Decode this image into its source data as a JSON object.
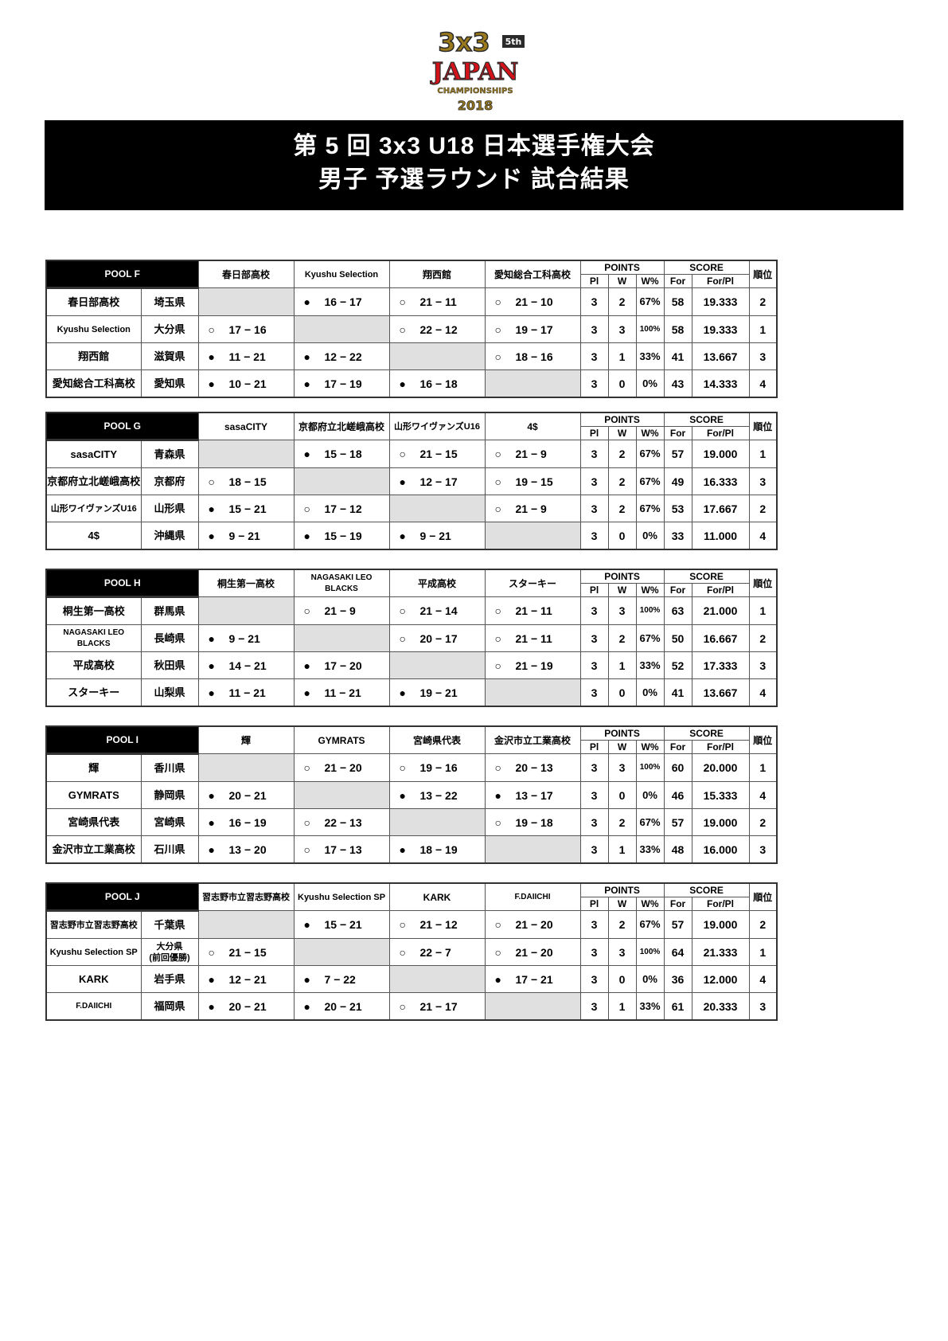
{
  "logo": {
    "text": "3x3 5th JAPAN CHAMPIONSHIPS 2018",
    "colors": {
      "gold": "#9a7a1c",
      "red": "#d4121a",
      "dark": "#2a2a2a"
    }
  },
  "title": {
    "line1": "第 5 回  3x3 U18  日本選手権大会",
    "line2": "男子  予選ラウンド   試合結果"
  },
  "labels": {
    "points": "POINTS",
    "score": "SCORE",
    "pl": "Pl",
    "w": "W",
    "wpct": "W%",
    "for": "For",
    "forpl": "For/Pl",
    "rank": "順位"
  },
  "pools": [
    {
      "name": "POOL  F",
      "teams": [
        {
          "name": "春日部高校",
          "pref": "埼玉県",
          "results": [
            null,
            [
              "●",
              "16 − 17"
            ],
            [
              "○",
              "21 − 11"
            ],
            [
              "○",
              "21 − 10"
            ]
          ],
          "pl": "3",
          "w": "2",
          "wpct": "67%",
          "for": "58",
          "forpl": "19.333",
          "rank": "2"
        },
        {
          "name": "Kyushu Selection",
          "pref": "大分県",
          "results": [
            [
              "○",
              "17 − 16"
            ],
            null,
            [
              "○",
              "22 − 12"
            ],
            [
              "○",
              "19 − 17"
            ]
          ],
          "pl": "3",
          "w": "3",
          "wpct": "100%",
          "for": "58",
          "forpl": "19.333",
          "rank": "1"
        },
        {
          "name": "翔西館",
          "pref": "滋賀県",
          "results": [
            [
              "●",
              "11 − 21"
            ],
            [
              "●",
              "12 − 22"
            ],
            null,
            [
              "○",
              "18 − 16"
            ]
          ],
          "pl": "3",
          "w": "1",
          "wpct": "33%",
          "for": "41",
          "forpl": "13.667",
          "rank": "3"
        },
        {
          "name": "愛知総合工科高校",
          "pref": "愛知県",
          "results": [
            [
              "●",
              "10 − 21"
            ],
            [
              "●",
              "17 − 19"
            ],
            [
              "●",
              "16 − 18"
            ],
            null
          ],
          "pl": "3",
          "w": "0",
          "wpct": "0%",
          "for": "43",
          "forpl": "14.333",
          "rank": "4"
        }
      ]
    },
    {
      "name": "POOL  G",
      "teams": [
        {
          "name": "sasaCITY",
          "pref": "青森県",
          "results": [
            null,
            [
              "●",
              "15 − 18"
            ],
            [
              "○",
              "21 − 15"
            ],
            [
              "○",
              "21 − 9"
            ]
          ],
          "pl": "3",
          "w": "2",
          "wpct": "67%",
          "for": "57",
          "forpl": "19.000",
          "rank": "1"
        },
        {
          "name": "京都府立北嵯峨高校",
          "pref": "京都府",
          "results": [
            [
              "○",
              "18 − 15"
            ],
            null,
            [
              "●",
              "12 − 17"
            ],
            [
              "○",
              "19 − 15"
            ]
          ],
          "pl": "3",
          "w": "2",
          "wpct": "67%",
          "for": "49",
          "forpl": "16.333",
          "rank": "3"
        },
        {
          "name": "山形ワイヴァンズU16",
          "pref": "山形県",
          "results": [
            [
              "●",
              "15 − 21"
            ],
            [
              "○",
              "17 − 12"
            ],
            null,
            [
              "○",
              "21 − 9"
            ]
          ],
          "pl": "3",
          "w": "2",
          "wpct": "67%",
          "for": "53",
          "forpl": "17.667",
          "rank": "2"
        },
        {
          "name": "4$",
          "pref": "沖縄県",
          "results": [
            [
              "●",
              "9 − 21"
            ],
            [
              "●",
              "15 − 19"
            ],
            [
              "●",
              "9 − 21"
            ],
            null
          ],
          "pl": "3",
          "w": "0",
          "wpct": "0%",
          "for": "33",
          "forpl": "11.000",
          "rank": "4"
        }
      ]
    },
    {
      "name": "POOL  H",
      "teams": [
        {
          "name": "桐生第一高校",
          "pref": "群馬県",
          "results": [
            null,
            [
              "○",
              "21 − 9"
            ],
            [
              "○",
              "21 − 14"
            ],
            [
              "○",
              "21 − 11"
            ]
          ],
          "pl": "3",
          "w": "3",
          "wpct": "100%",
          "for": "63",
          "forpl": "21.000",
          "rank": "1"
        },
        {
          "name": "NAGASAKI LEO BLACKS",
          "pref": "長崎県",
          "results": [
            [
              "●",
              "9 − 21"
            ],
            null,
            [
              "○",
              "20 − 17"
            ],
            [
              "○",
              "21 − 11"
            ]
          ],
          "pl": "3",
          "w": "2",
          "wpct": "67%",
          "for": "50",
          "forpl": "16.667",
          "rank": "2"
        },
        {
          "name": "平成高校",
          "pref": "秋田県",
          "results": [
            [
              "●",
              "14 − 21"
            ],
            [
              "●",
              "17 − 20"
            ],
            null,
            [
              "○",
              "21 − 19"
            ]
          ],
          "pl": "3",
          "w": "1",
          "wpct": "33%",
          "for": "52",
          "forpl": "17.333",
          "rank": "3"
        },
        {
          "name": "スターキー",
          "pref": "山梨県",
          "results": [
            [
              "●",
              "11 − 21"
            ],
            [
              "●",
              "11 − 21"
            ],
            [
              "●",
              "19 − 21"
            ],
            null
          ],
          "pl": "3",
          "w": "0",
          "wpct": "0%",
          "for": "41",
          "forpl": "13.667",
          "rank": "4"
        }
      ]
    },
    {
      "name": "POOL  I",
      "teams": [
        {
          "name": "輝",
          "pref": "香川県",
          "results": [
            null,
            [
              "○",
              "21 − 20"
            ],
            [
              "○",
              "19 − 16"
            ],
            [
              "○",
              "20 − 13"
            ]
          ],
          "pl": "3",
          "w": "3",
          "wpct": "100%",
          "for": "60",
          "forpl": "20.000",
          "rank": "1"
        },
        {
          "name": "GYMRATS",
          "pref": "静岡県",
          "results": [
            [
              "●",
              "20 − 21"
            ],
            null,
            [
              "●",
              "13 − 22"
            ],
            [
              "●",
              "13 − 17"
            ]
          ],
          "pl": "3",
          "w": "0",
          "wpct": "0%",
          "for": "46",
          "forpl": "15.333",
          "rank": "4"
        },
        {
          "name": "宮崎県代表",
          "pref": "宮崎県",
          "results": [
            [
              "●",
              "16 − 19"
            ],
            [
              "○",
              "22 − 13"
            ],
            null,
            [
              "○",
              "19 − 18"
            ]
          ],
          "pl": "3",
          "w": "2",
          "wpct": "67%",
          "for": "57",
          "forpl": "19.000",
          "rank": "2"
        },
        {
          "name": "金沢市立工業高校",
          "pref": "石川県",
          "results": [
            [
              "●",
              "13 − 20"
            ],
            [
              "○",
              "17 − 13"
            ],
            [
              "●",
              "18 − 19"
            ],
            null
          ],
          "pl": "3",
          "w": "1",
          "wpct": "33%",
          "for": "48",
          "forpl": "16.000",
          "rank": "3"
        }
      ]
    },
    {
      "name": "POOL  J",
      "teams": [
        {
          "name": "習志野市立習志野高校",
          "pref": "千葉県",
          "results": [
            null,
            [
              "●",
              "15 − 21"
            ],
            [
              "○",
              "21 − 12"
            ],
            [
              "○",
              "21 − 20"
            ]
          ],
          "pl": "3",
          "w": "2",
          "wpct": "67%",
          "for": "57",
          "forpl": "19.000",
          "rank": "2"
        },
        {
          "name": "Kyushu Selection SP",
          "pref": "大分県\n(前回優勝)",
          "results": [
            [
              "○",
              "21 − 15"
            ],
            null,
            [
              "○",
              "22 − 7"
            ],
            [
              "○",
              "21 − 20"
            ]
          ],
          "pl": "3",
          "w": "3",
          "wpct": "100%",
          "for": "64",
          "forpl": "21.333",
          "rank": "1"
        },
        {
          "name": "KARK",
          "pref": "岩手県",
          "results": [
            [
              "●",
              "12 − 21"
            ],
            [
              "●",
              "7 − 22"
            ],
            null,
            [
              "●",
              "17 − 21"
            ]
          ],
          "pl": "3",
          "w": "0",
          "wpct": "0%",
          "for": "36",
          "forpl": "12.000",
          "rank": "4"
        },
        {
          "name": "F.DAIICHI",
          "pref": "福岡県",
          "results": [
            [
              "●",
              "20 − 21"
            ],
            [
              "●",
              "20 − 21"
            ],
            [
              "○",
              "21 − 17"
            ],
            null
          ],
          "pl": "3",
          "w": "1",
          "wpct": "33%",
          "for": "61",
          "forpl": "20.333",
          "rank": "3"
        }
      ]
    }
  ]
}
